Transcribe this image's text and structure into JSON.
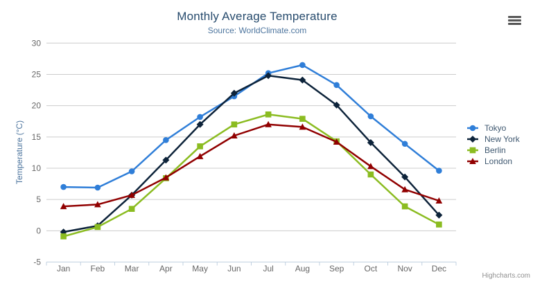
{
  "chart": {
    "credits": "Highcharts.com",
    "icons": {
      "context_menu": "hamburger-icon"
    }
  },
  "chart_data": {
    "type": "line",
    "title": "Monthly Average Temperature",
    "subtitle": "Source: WorldClimate.com",
    "xlabel": "",
    "ylabel": "Temperature (°C)",
    "categories": [
      "Jan",
      "Feb",
      "Mar",
      "Apr",
      "May",
      "Jun",
      "Jul",
      "Aug",
      "Sep",
      "Oct",
      "Nov",
      "Dec"
    ],
    "series": [
      {
        "name": "Tokyo",
        "color": "#2f7ed8",
        "marker": "circle",
        "values": [
          7.0,
          6.9,
          9.5,
          14.5,
          18.2,
          21.5,
          25.2,
          26.5,
          23.3,
          18.3,
          13.9,
          9.6
        ]
      },
      {
        "name": "New York",
        "color": "#0d233a",
        "marker": "diamond",
        "values": [
          -0.2,
          0.8,
          5.7,
          11.3,
          17.0,
          22.0,
          24.8,
          24.1,
          20.1,
          14.1,
          8.6,
          2.5
        ]
      },
      {
        "name": "Berlin",
        "color": "#8bbc21",
        "marker": "square",
        "values": [
          -0.9,
          0.6,
          3.5,
          8.4,
          13.5,
          17.0,
          18.6,
          17.9,
          14.3,
          9.0,
          3.9,
          1.0
        ]
      },
      {
        "name": "London",
        "color": "#910000",
        "marker": "triangle",
        "values": [
          3.9,
          4.2,
          5.7,
          8.5,
          11.9,
          15.2,
          17.0,
          16.6,
          14.2,
          10.3,
          6.6,
          4.8
        ]
      }
    ],
    "ylim": [
      -5,
      30
    ],
    "yticks": [
      -5,
      0,
      5,
      10,
      15,
      20,
      25,
      30
    ],
    "grid": true,
    "legend_position": "right"
  },
  "colors": {
    "title": "#274b6d",
    "subtitle": "#4d759e",
    "axis_title": "#4d759e",
    "axis_labels": "#666666",
    "grid_line": "#cccccc",
    "axis_line": "#c0d0e0",
    "legend_text": "#3e576f",
    "credits": "#909090",
    "background": "#ffffff"
  }
}
